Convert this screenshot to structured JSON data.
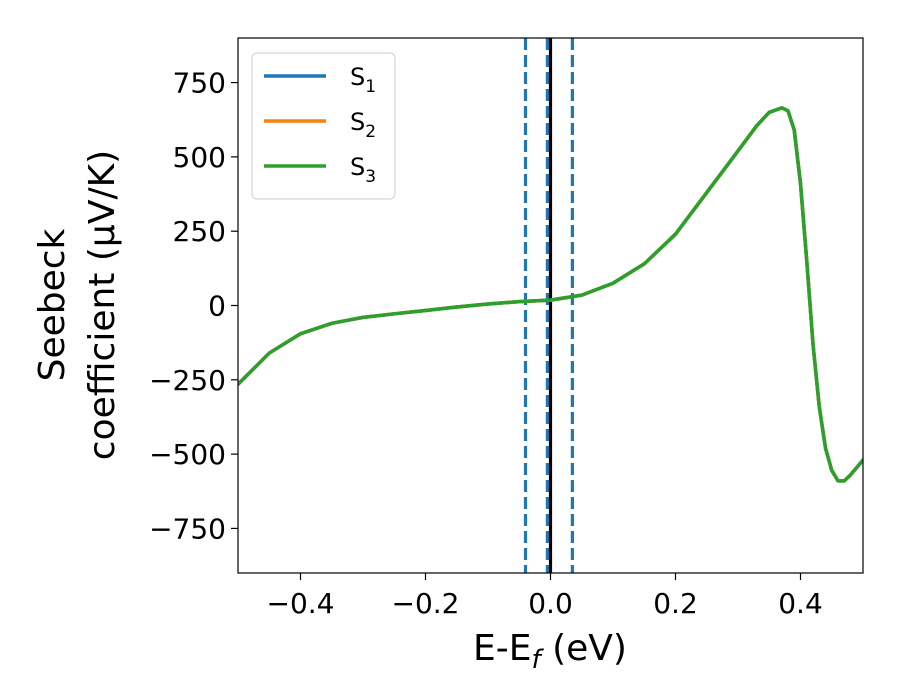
{
  "chart_data": {
    "type": "line",
    "xlabel": {
      "main": "E-E",
      "sub": "f",
      "unit": " (eV)"
    },
    "ylabel": {
      "line1": "Seebeck",
      "line2": "coefficient  (μV/K)"
    },
    "xlim": [
      -0.5,
      0.5
    ],
    "ylim": [
      -900,
      900
    ],
    "xticks": [
      -0.4,
      -0.2,
      0.0,
      0.2,
      0.4
    ],
    "xtick_labels": [
      "−0.4",
      "−0.2",
      "0.0",
      "0.2",
      "0.4"
    ],
    "yticks": [
      750,
      500,
      250,
      0,
      -250,
      -500,
      -750
    ],
    "ytick_labels": [
      "750",
      "500",
      "250",
      "0",
      "−250",
      "−500",
      "−750"
    ],
    "grid": false,
    "legend_position": "top-left",
    "series": [
      {
        "name": "S",
        "sub": "1",
        "color": "#1f77b4"
      },
      {
        "name": "S",
        "sub": "2",
        "color": "#ff7f0e"
      },
      {
        "name": "S",
        "sub": "3",
        "color": "#2ca02c",
        "x": [
          -0.5,
          -0.45,
          -0.4,
          -0.35,
          -0.3,
          -0.25,
          -0.2,
          -0.15,
          -0.1,
          -0.05,
          0.0,
          0.05,
          0.1,
          0.15,
          0.2,
          0.25,
          0.3,
          0.33,
          0.35,
          0.37,
          0.38,
          0.39,
          0.4,
          0.41,
          0.42,
          0.43,
          0.44,
          0.45,
          0.46,
          0.47,
          0.48,
          0.49,
          0.5
        ],
        "y": [
          -265,
          -160,
          -95,
          -60,
          -40,
          -28,
          -17,
          -5,
          5,
          13,
          18,
          35,
          75,
          140,
          240,
          380,
          520,
          605,
          650,
          665,
          655,
          590,
          410,
          150,
          -130,
          -340,
          -480,
          -555,
          -590,
          -590,
          -570,
          -545,
          -520
        ]
      }
    ],
    "vlines": [
      {
        "x": -0.04,
        "style": "dashed",
        "color": "#1f77b4"
      },
      {
        "x": -0.005,
        "style": "dashed",
        "color": "#1f77b4"
      },
      {
        "x": 0.035,
        "style": "dashed",
        "color": "#1f77b4"
      },
      {
        "x": 0.0,
        "style": "solid",
        "color": "#000000"
      }
    ]
  }
}
